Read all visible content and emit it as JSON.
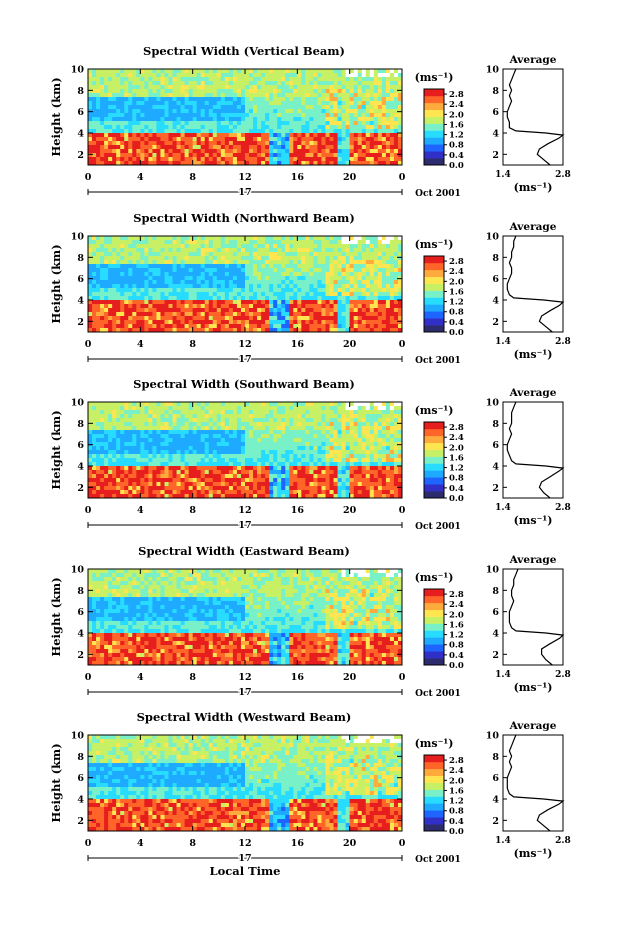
{
  "chart_data": [
    {
      "type": "heatmap",
      "title": "Spectral Width (Vertical Beam)",
      "ylabel": "Height (km)",
      "x_ticks": [
        "0",
        "4",
        "8",
        "12",
        "16",
        "20",
        "0"
      ],
      "y_ticks": [
        "2",
        "4",
        "6",
        "8",
        "10"
      ],
      "xlim": [
        0,
        24
      ],
      "ylim": [
        1,
        10
      ],
      "date_day": "17",
      "date_label": "Oct 2001",
      "colorbar": {
        "unit": "(ms⁻¹)",
        "ticks": [
          "0.0",
          "0.4",
          "0.8",
          "1.2",
          "1.6",
          "2.0",
          "2.4",
          "2.8"
        ],
        "range": [
          0,
          3.0
        ]
      },
      "profile": {
        "title": "Average",
        "xlabel": "(ms⁻¹)",
        "x_ticks": [
          "1.4",
          "2.8"
        ],
        "xlim": [
          1.4,
          2.8
        ],
        "y_ticks": [
          "2",
          "4",
          "6",
          "8",
          "10"
        ],
        "heights": [
          1.0,
          1.5,
          2.0,
          2.5,
          3.0,
          3.5,
          3.8,
          4.0,
          4.2,
          4.5,
          5.0,
          5.5,
          6.0,
          6.5,
          7.0,
          7.5,
          8.0,
          8.5,
          9.0,
          9.5,
          10.0
        ],
        "values": [
          2.5,
          2.35,
          2.2,
          2.25,
          2.45,
          2.7,
          2.8,
          2.4,
          1.7,
          1.55,
          1.55,
          1.5,
          1.5,
          1.55,
          1.6,
          1.55,
          1.6,
          1.55,
          1.6,
          1.65,
          1.7
        ]
      }
    },
    {
      "type": "heatmap",
      "title": "Spectral Width (Northward Beam)",
      "ylabel": "Height (km)",
      "x_ticks": [
        "0",
        "4",
        "8",
        "12",
        "16",
        "20",
        "0"
      ],
      "y_ticks": [
        "2",
        "4",
        "6",
        "8",
        "10"
      ],
      "xlim": [
        0,
        24
      ],
      "ylim": [
        1,
        10
      ],
      "date_day": "17",
      "date_label": "Oct 2001",
      "colorbar": {
        "unit": "(ms⁻¹)",
        "ticks": [
          "0.0",
          "0.4",
          "0.8",
          "1.2",
          "1.6",
          "2.0",
          "2.4",
          "2.8"
        ],
        "range": [
          0,
          3.0
        ]
      },
      "profile": {
        "title": "Average",
        "xlabel": "(ms⁻¹)",
        "x_ticks": [
          "1.4",
          "2.8"
        ],
        "xlim": [
          1.4,
          2.8
        ],
        "y_ticks": [
          "2",
          "4",
          "6",
          "8",
          "10"
        ],
        "heights": [
          1.0,
          1.5,
          2.0,
          2.5,
          3.0,
          3.5,
          3.8,
          4.0,
          4.2,
          4.5,
          5.0,
          5.5,
          6.0,
          6.5,
          7.0,
          7.5,
          8.0,
          8.5,
          9.0,
          9.5,
          10.0
        ],
        "values": [
          2.55,
          2.4,
          2.25,
          2.3,
          2.5,
          2.72,
          2.8,
          2.35,
          1.65,
          1.55,
          1.5,
          1.5,
          1.55,
          1.6,
          1.6,
          1.55,
          1.6,
          1.6,
          1.65,
          1.65,
          1.7
        ]
      }
    },
    {
      "type": "heatmap",
      "title": "Spectral Width (Southward Beam)",
      "ylabel": "Height (km)",
      "x_ticks": [
        "0",
        "4",
        "8",
        "12",
        "16",
        "20",
        "0"
      ],
      "y_ticks": [
        "2",
        "4",
        "6",
        "8",
        "10"
      ],
      "xlim": [
        0,
        24
      ],
      "ylim": [
        1,
        10
      ],
      "date_day": "17",
      "date_label": "Oct 2001",
      "colorbar": {
        "unit": "(ms⁻¹)",
        "ticks": [
          "0.0",
          "0.4",
          "0.8",
          "1.2",
          "1.6",
          "2.0",
          "2.4",
          "2.8"
        ],
        "range": [
          0,
          3.0
        ]
      },
      "profile": {
        "title": "Average",
        "xlabel": "(ms⁻¹)",
        "x_ticks": [
          "1.4",
          "2.8"
        ],
        "xlim": [
          1.4,
          2.8
        ],
        "y_ticks": [
          "2",
          "4",
          "6",
          "8",
          "10"
        ],
        "heights": [
          1.0,
          1.5,
          2.0,
          2.5,
          3.0,
          3.5,
          3.8,
          4.0,
          4.2,
          4.5,
          5.0,
          5.5,
          6.0,
          6.5,
          7.0,
          7.5,
          8.0,
          8.5,
          9.0,
          9.5,
          10.0
        ],
        "values": [
          2.5,
          2.35,
          2.25,
          2.3,
          2.5,
          2.7,
          2.8,
          2.4,
          1.7,
          1.6,
          1.55,
          1.5,
          1.5,
          1.55,
          1.6,
          1.55,
          1.6,
          1.6,
          1.6,
          1.65,
          1.7
        ]
      }
    },
    {
      "type": "heatmap",
      "title": "Spectral Width (Eastward Beam)",
      "ylabel": "Height (km)",
      "x_ticks": [
        "0",
        "4",
        "8",
        "12",
        "16",
        "20",
        "0"
      ],
      "y_ticks": [
        "2",
        "4",
        "6",
        "8",
        "10"
      ],
      "xlim": [
        0,
        24
      ],
      "ylim": [
        1,
        10
      ],
      "date_day": "17",
      "date_label": "Oct 2001",
      "colorbar": {
        "unit": "(ms⁻¹)",
        "ticks": [
          "0.0",
          "0.4",
          "0.8",
          "1.2",
          "1.6",
          "2.0",
          "2.4",
          "2.8"
        ],
        "range": [
          0,
          3.0
        ]
      },
      "profile": {
        "title": "Average",
        "xlabel": "(ms⁻¹)",
        "x_ticks": [
          "1.4",
          "2.8"
        ],
        "xlim": [
          1.4,
          2.8
        ],
        "y_ticks": [
          "2",
          "4",
          "6",
          "8",
          "10"
        ],
        "heights": [
          1.0,
          1.5,
          2.0,
          2.5,
          3.0,
          3.5,
          3.8,
          4.0,
          4.2,
          4.5,
          5.0,
          5.5,
          6.0,
          6.5,
          7.0,
          7.5,
          8.0,
          8.5,
          9.0,
          9.5,
          10.0
        ],
        "values": [
          2.55,
          2.4,
          2.3,
          2.3,
          2.5,
          2.72,
          2.8,
          2.4,
          1.7,
          1.6,
          1.55,
          1.55,
          1.55,
          1.6,
          1.65,
          1.6,
          1.6,
          1.65,
          1.65,
          1.7,
          1.75
        ]
      }
    },
    {
      "type": "heatmap",
      "title": "Spectral Width (Westward Beam)",
      "ylabel": "Height (km)",
      "x_ticks": [
        "0",
        "4",
        "8",
        "12",
        "16",
        "20",
        "0"
      ],
      "y_ticks": [
        "2",
        "4",
        "6",
        "8",
        "10"
      ],
      "xlim": [
        0,
        24
      ],
      "ylim": [
        1,
        10
      ],
      "date_day": "17",
      "date_label": "Oct 2001",
      "xlabel": "Local Time",
      "colorbar": {
        "unit": "(ms⁻¹)",
        "ticks": [
          "0.0",
          "0.4",
          "0.8",
          "1.2",
          "1.6",
          "2.0",
          "2.4",
          "2.8"
        ],
        "range": [
          0,
          3.0
        ]
      },
      "profile": {
        "title": "Average",
        "xlabel": "(ms⁻¹)",
        "x_ticks": [
          "1.4",
          "2.8"
        ],
        "xlim": [
          1.4,
          2.8
        ],
        "y_ticks": [
          "2",
          "4",
          "6",
          "8",
          "10"
        ],
        "heights": [
          1.0,
          1.5,
          2.0,
          2.5,
          3.0,
          3.5,
          3.8,
          4.0,
          4.2,
          4.5,
          5.0,
          5.5,
          6.0,
          6.5,
          7.0,
          7.5,
          8.0,
          8.5,
          9.0,
          9.5,
          10.0
        ],
        "values": [
          2.5,
          2.35,
          2.2,
          2.25,
          2.45,
          2.7,
          2.8,
          2.35,
          1.65,
          1.55,
          1.5,
          1.5,
          1.5,
          1.55,
          1.6,
          1.55,
          1.6,
          1.55,
          1.6,
          1.65,
          1.7
        ]
      }
    }
  ],
  "colors": {
    "colormap": [
      "#2b2b6e",
      "#3030c8",
      "#1e64ff",
      "#1eaaff",
      "#28dcff",
      "#78f0c8",
      "#c8f064",
      "#ffe650",
      "#ffaa3c",
      "#ff6428",
      "#e61e1e"
    ]
  }
}
